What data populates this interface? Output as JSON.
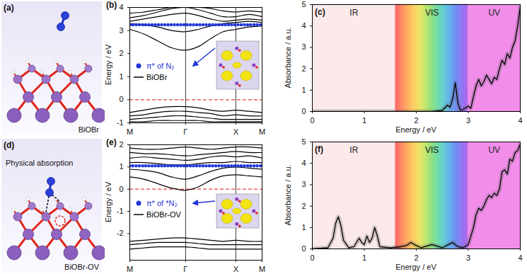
{
  "chart_data": [
    {
      "type": "structure",
      "panel": "(a)",
      "label": "BiOBr"
    },
    {
      "type": "band",
      "panel": "(b)",
      "y_label": "Energy / eV",
      "x": [
        0,
        0.25,
        0.5,
        0.75,
        1,
        1.225,
        1.45,
        1.675,
        1.9,
        2.135,
        2.37
      ],
      "xlim": [
        0,
        2.37
      ],
      "xticks": [
        {
          "value": 0,
          "label": "M"
        },
        {
          "value": 1,
          "label": "Γ"
        },
        {
          "value": 1.9,
          "label": "X"
        },
        {
          "value": 2.37,
          "label": "M"
        }
      ],
      "ylim": [
        -1,
        4
      ],
      "yticks": [
        -1,
        0,
        1,
        2,
        3,
        4
      ],
      "grid": true,
      "legend": "center left",
      "reference_line": {
        "value": 0,
        "color": "#e8423b",
        "line_style": "dashed"
      },
      "series": [
        {
          "name": "π* of N₂",
          "color": "#1f35d8",
          "marker": "dot",
          "line_style": "dotted",
          "values": [
            [
              3.25,
              3.25,
              3.25,
              3.25,
              3.25,
              3.25,
              3.25,
              3.25,
              3.25,
              3.25,
              3.25
            ]
          ]
        },
        {
          "name": "BiOBr",
          "color": "#000000",
          "line_style": "solid",
          "values": [
            [
              3.05,
              2.85,
              2.55,
              2.25,
              2.15,
              2.3,
              2.65,
              2.95,
              3.05,
              3.15,
              3.2
            ],
            [
              3.3,
              3.25,
              3.15,
              3.0,
              2.95,
              3.05,
              3.2,
              3.3,
              3.35,
              3.4,
              3.35
            ],
            [
              3.4,
              3.5,
              3.6,
              3.7,
              3.75,
              3.65,
              3.5,
              3.4,
              3.45,
              3.5,
              3.45
            ],
            [
              3.55,
              3.65,
              3.8,
              3.95,
              4.0,
              3.9,
              3.75,
              3.6,
              3.6,
              3.7,
              3.6
            ],
            [
              3.75,
              3.8,
              3.9,
              4.0,
              4.0,
              4.0,
              3.95,
              3.85,
              3.8,
              3.85,
              3.8
            ],
            [
              -0.55,
              -0.45,
              -0.35,
              -0.3,
              -0.3,
              -0.35,
              -0.45,
              -0.5,
              -0.45,
              -0.5,
              -0.55
            ],
            [
              -0.7,
              -0.65,
              -0.55,
              -0.5,
              -0.5,
              -0.55,
              -0.6,
              -0.7,
              -0.65,
              -0.7,
              -0.7
            ],
            [
              -0.85,
              -0.8,
              -0.75,
              -0.7,
              -0.7,
              -0.75,
              -0.8,
              -0.85,
              -0.85,
              -0.85,
              -0.85
            ],
            [
              -0.95,
              -0.95,
              -0.9,
              -0.9,
              -0.9,
              -0.9,
              -0.95,
              -0.95,
              -0.95,
              -0.95,
              -0.95
            ]
          ]
        }
      ]
    },
    {
      "type": "line",
      "panel": "(c)",
      "x_label": "Energy / eV",
      "y_label": "Absorbance / a.u.",
      "xlim": [
        0,
        4
      ],
      "xticks": [
        0,
        1,
        2,
        3,
        4
      ],
      "ylim": [
        0,
        5
      ],
      "yticks": [
        0,
        1,
        2,
        3,
        4,
        5
      ],
      "color": "#000000",
      "regions": [
        {
          "label": "IR",
          "from": 0,
          "to": 1.6,
          "color": "#fbe6e6"
        },
        {
          "label": "VIS",
          "from": 1.6,
          "to": 3.0,
          "colors": [
            "#ff3b3b",
            "#ff9a2e",
            "#ffe93a",
            "#62d64a",
            "#2ccfd0",
            "#3a66ff",
            "#9a3be6"
          ]
        },
        {
          "label": "UV",
          "from": 3.0,
          "to": 4.0,
          "color": "#f07ae6"
        }
      ],
      "x": [
        0,
        0.5,
        1,
        1.5,
        2,
        2.3,
        2.5,
        2.6,
        2.65,
        2.7,
        2.75,
        2.8,
        2.85,
        2.9,
        3.0,
        3.05,
        3.1,
        3.15,
        3.2,
        3.25,
        3.3,
        3.35,
        3.4,
        3.45,
        3.5,
        3.55,
        3.6,
        3.65,
        3.7,
        3.75,
        3.8,
        3.85,
        3.9,
        3.95,
        4.0
      ],
      "values": [
        0,
        0,
        0,
        0,
        0,
        0,
        0.05,
        0.3,
        0.2,
        0.6,
        1.35,
        0.4,
        0.05,
        0.1,
        0.25,
        0.15,
        0.7,
        1.2,
        1.5,
        1.2,
        1.4,
        1.7,
        1.5,
        1.3,
        1.6,
        1.5,
        2.0,
        2.4,
        2.2,
        2.7,
        2.5,
        3.0,
        3.3,
        4.0,
        4.9
      ]
    },
    {
      "type": "structure",
      "panel": "(d)",
      "label": "BiOBr-OV",
      "annotation": "Physical absorption"
    },
    {
      "type": "band",
      "panel": "(e)",
      "y_label": "Energy / eV",
      "x": [
        0,
        0.25,
        0.5,
        0.75,
        1,
        1.225,
        1.45,
        1.675,
        1.9,
        2.135,
        2.37
      ],
      "xlim": [
        0,
        2.37
      ],
      "xticks": [
        {
          "value": 0,
          "label": "M"
        },
        {
          "value": 1,
          "label": "Γ"
        },
        {
          "value": 1.9,
          "label": "X"
        },
        {
          "value": 2.37,
          "label": "M"
        }
      ],
      "ylim": [
        -3.2,
        2
      ],
      "yticks": [
        -2,
        -1,
        0,
        1,
        2
      ],
      "grid": true,
      "legend": "center left",
      "reference_line": {
        "value": 0,
        "color": "#e8423b",
        "line_style": "dashed"
      },
      "series": [
        {
          "name": "π* of *N₂",
          "color": "#1f35d8",
          "marker": "dot",
          "line_style": "dotted",
          "values": [
            [
              1.05,
              1.05,
              1.05,
              1.05,
              1.05,
              1.05,
              1.05,
              1.05,
              1.05,
              1.05,
              1.05
            ]
          ]
        },
        {
          "name": "BiOBr-OV",
          "color": "#000000",
          "line_style": "solid",
          "values": [
            [
              0.55,
              0.45,
              0.25,
              0.05,
              -0.05,
              0.1,
              0.4,
              0.6,
              0.65,
              0.6,
              0.55
            ],
            [
              0.9,
              0.85,
              0.75,
              0.55,
              0.45,
              0.6,
              0.8,
              0.95,
              1.0,
              0.95,
              0.9
            ],
            [
              1.2,
              1.2,
              1.15,
              1.1,
              1.1,
              1.15,
              1.2,
              1.2,
              1.25,
              1.2,
              1.2
            ],
            [
              1.4,
              1.45,
              1.4,
              1.35,
              1.3,
              1.35,
              1.45,
              1.5,
              1.45,
              1.5,
              1.4
            ],
            [
              1.65,
              1.6,
              1.6,
              1.55,
              1.5,
              1.55,
              1.6,
              1.65,
              1.7,
              1.65,
              1.65
            ],
            [
              1.85,
              1.8,
              1.8,
              1.85,
              1.9,
              1.85,
              1.8,
              1.85,
              1.9,
              1.9,
              1.85
            ],
            [
              -2.35,
              -2.3,
              -2.25,
              -2.2,
              -2.2,
              -2.25,
              -2.3,
              -2.35,
              -2.3,
              -2.35,
              -2.35
            ],
            [
              -2.5,
              -2.45,
              -2.4,
              -2.4,
              -2.4,
              -2.45,
              -2.5,
              -2.5,
              -2.5,
              -2.5,
              -2.5
            ],
            [
              -2.7,
              -2.65,
              -2.6,
              -2.6,
              -2.6,
              -2.65,
              -2.7,
              -2.7,
              -2.7,
              -2.7,
              -2.7
            ]
          ]
        }
      ]
    },
    {
      "type": "line",
      "panel": "(f)",
      "x_label": "Energy / eV",
      "y_label": "Absorbance / a.u.",
      "xlim": [
        0,
        4
      ],
      "xticks": [
        0,
        1,
        2,
        3,
        4
      ],
      "ylim": [
        0,
        5
      ],
      "yticks": [
        0,
        1,
        2,
        3,
        4,
        5
      ],
      "color": "#000000",
      "regions": [
        {
          "label": "IR",
          "from": 0,
          "to": 1.6,
          "color": "#fbe6e6"
        },
        {
          "label": "VIS",
          "from": 1.6,
          "to": 3.0,
          "colors": [
            "#ff3b3b",
            "#ff9a2e",
            "#ffe93a",
            "#62d64a",
            "#2ccfd0",
            "#3a66ff",
            "#9a3be6"
          ]
        },
        {
          "label": "UV",
          "from": 3.0,
          "to": 4.0,
          "color": "#f07ae6"
        }
      ],
      "x": [
        0,
        0.3,
        0.4,
        0.45,
        0.5,
        0.55,
        0.6,
        0.7,
        0.8,
        0.9,
        0.95,
        1.0,
        1.05,
        1.1,
        1.15,
        1.2,
        1.25,
        1.3,
        1.5,
        1.7,
        1.8,
        1.9,
        2.0,
        2.1,
        2.3,
        2.5,
        2.7,
        2.8,
        2.9,
        3.0,
        3.05,
        3.1,
        3.15,
        3.2,
        3.25,
        3.3,
        3.35,
        3.4,
        3.45,
        3.5,
        3.55,
        3.6,
        3.65,
        3.7,
        3.75,
        3.8,
        3.85,
        3.9,
        3.95,
        4.0
      ],
      "values": [
        0,
        0.05,
        0.5,
        1.2,
        1.5,
        1.1,
        0.4,
        0.05,
        0.1,
        0.5,
        0.3,
        0.2,
        0.6,
        0.3,
        0.5,
        1.0,
        0.6,
        0.1,
        0.05,
        0.1,
        0.15,
        0.3,
        0.15,
        0.05,
        0.2,
        0.05,
        0.3,
        0.1,
        0.05,
        0.2,
        0.6,
        1.0,
        1.6,
        1.9,
        1.8,
        2.0,
        2.3,
        2.5,
        2.4,
        2.6,
        2.5,
        2.8,
        3.6,
        3.7,
        3.5,
        4.2,
        4.1,
        4.5,
        4.6,
        4.9
      ]
    }
  ]
}
